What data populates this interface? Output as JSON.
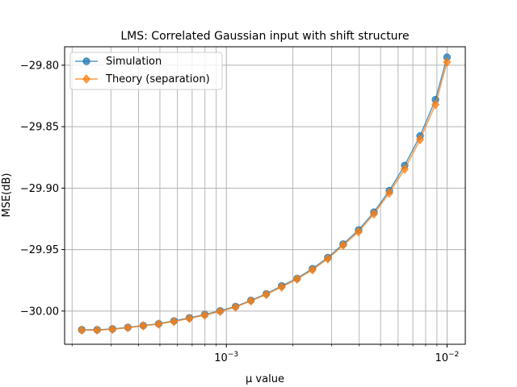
{
  "chart_data": {
    "type": "line",
    "title": "LMS: Correlated Gaussian input with shift structure",
    "xlabel": "μ value",
    "ylabel": "MSE(dB)",
    "xscale": "log",
    "xlim": [
      0.000185,
      0.0121
    ],
    "ylim": [
      -30.027,
      -29.785
    ],
    "yticks": [
      -30.0,
      -29.95,
      -29.9,
      -29.85,
      -29.8
    ],
    "ytick_labels": [
      "−30.00",
      "−29.95",
      "−29.90",
      "−29.85",
      "−29.80"
    ],
    "xticks": [
      0.001,
      0.01
    ],
    "xtick_labels": [
      "10",
      "10"
    ],
    "xtick_exponents": [
      "−3",
      "−2"
    ],
    "grid": "both major and minor",
    "legend_position": "upper-left",
    "colors": {
      "simulation": "#1f77b4",
      "theory": "#ff7f0e"
    },
    "x": [
      0.0002212,
      0.0002597,
      0.0003049,
      0.000358,
      0.0004203,
      0.0004934,
      0.0005793,
      0.0006801,
      0.0007985,
      0.0009375,
      0.0011007,
      0.0012923,
      0.0015172,
      0.0017813,
      0.0020913,
      0.0024553,
      0.0028827,
      0.0033844,
      0.0039734,
      0.004665,
      0.005477,
      0.00643,
      0.007549,
      0.008863,
      0.01
    ],
    "series": [
      {
        "name": "Simulation",
        "marker": "circle",
        "values": [
          -30.0152,
          -30.0152,
          -30.0145,
          -30.0133,
          -30.0118,
          -30.0103,
          -30.008,
          -30.0055,
          -30.0028,
          -29.9998,
          -29.9963,
          -29.9913,
          -29.986,
          -29.9795,
          -29.9735,
          -29.9655,
          -29.9565,
          -29.9455,
          -29.934,
          -29.9195,
          -29.902,
          -29.8815,
          -29.8575,
          -29.828,
          -29.7935
        ]
      },
      {
        "name": "Theory (separation)",
        "marker": "diamond",
        "values": [
          -30.0155,
          -30.0155,
          -30.0148,
          -30.0135,
          -30.012,
          -30.0105,
          -30.0085,
          -30.006,
          -30.0033,
          -30.0003,
          -29.9968,
          -29.9918,
          -29.9865,
          -29.9805,
          -29.974,
          -29.9665,
          -29.9575,
          -29.9465,
          -29.9355,
          -29.921,
          -29.904,
          -29.8845,
          -29.8605,
          -29.832,
          -29.7975
        ]
      }
    ]
  }
}
